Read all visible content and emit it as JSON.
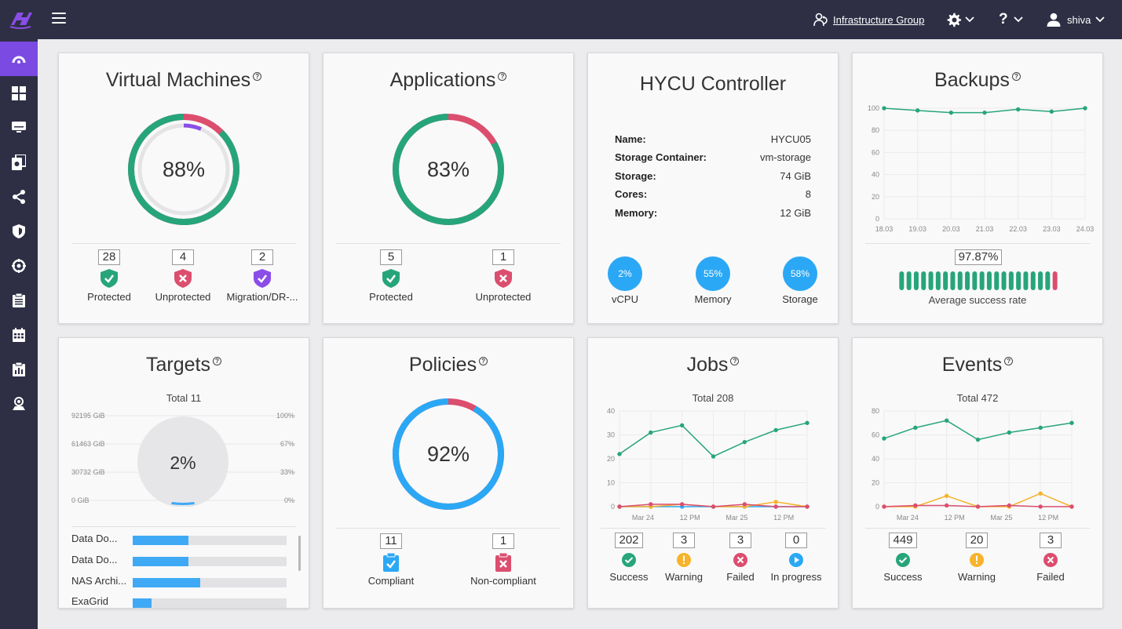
{
  "header": {
    "group_label": "Infrastructure Group",
    "user_label": "shiva"
  },
  "colors": {
    "green": "#27a57a",
    "red": "#dc4e6e",
    "purple": "#8a4de8",
    "blue": "#2ba8f5",
    "orange": "#f7b32b",
    "sidebar": "#2e2f45"
  },
  "sidebar": {
    "items": [
      "dashboard-icon",
      "grid-icon",
      "monitor-icon",
      "copies-icon",
      "share-icon",
      "shield-icon",
      "targets-icon",
      "clipboard-icon",
      "calendar-icon",
      "report-icon",
      "user-cog-icon"
    ]
  },
  "vm": {
    "title": "Virtual Machines",
    "percent_text": "88%",
    "protected_fraction": 0.875,
    "stats": [
      {
        "value": "28",
        "label": "Protected"
      },
      {
        "value": "4",
        "label": "Unprotected"
      },
      {
        "value": "2",
        "label": "Migration/DR-..."
      }
    ]
  },
  "apps": {
    "title": "Applications",
    "percent_text": "83%",
    "protected_fraction": 0.833,
    "stats": [
      {
        "value": "5",
        "label": "Protected"
      },
      {
        "value": "1",
        "label": "Unprotected"
      }
    ]
  },
  "controller": {
    "title": "HYCU Controller",
    "rows": [
      {
        "key": "Name:",
        "value": "HYCU05"
      },
      {
        "key": "Storage Container:",
        "value": "vm-storage"
      },
      {
        "key": "Storage:",
        "value": "74 GiB"
      },
      {
        "key": "Cores:",
        "value": "8"
      },
      {
        "key": "Memory:",
        "value": "12 GiB"
      }
    ],
    "usage": [
      {
        "value": "2%",
        "label": "vCPU"
      },
      {
        "value": "55%",
        "label": "Memory"
      },
      {
        "value": "58%",
        "label": "Storage"
      }
    ]
  },
  "backups": {
    "title": "Backups",
    "rate_text": "97.87%",
    "rate_label": "Average success rate",
    "bar_statuses": [
      "success",
      "success",
      "success",
      "success",
      "success",
      "success",
      "success",
      "success",
      "success",
      "success",
      "success",
      "success",
      "success",
      "success",
      "success",
      "success",
      "success",
      "success",
      "success",
      "success",
      "success",
      "failed"
    ]
  },
  "targets": {
    "title": "Targets",
    "total_text": "Total 11",
    "percent_text": "2%",
    "used_fraction": 0.02,
    "left_ticks": [
      "92195 GiB",
      "61463 GiB",
      "30732 GiB",
      "0 GiB"
    ],
    "right_ticks": [
      "100%",
      "67%",
      "33%",
      "0%"
    ],
    "rows": [
      {
        "name": "Data Do...",
        "fraction": 0.36
      },
      {
        "name": "Data Do...",
        "fraction": 0.36
      },
      {
        "name": "NAS Archi...",
        "fraction": 0.44
      },
      {
        "name": "ExaGrid",
        "fraction": 0.12
      }
    ]
  },
  "policies": {
    "title": "Policies",
    "percent_text": "92%",
    "compliant_fraction": 0.917,
    "stats": [
      {
        "value": "11",
        "label": "Compliant"
      },
      {
        "value": "1",
        "label": "Non-compliant"
      }
    ]
  },
  "jobs": {
    "title": "Jobs",
    "total_text": "Total 208",
    "stats": [
      {
        "value": "202",
        "label": "Success"
      },
      {
        "value": "3",
        "label": "Warning"
      },
      {
        "value": "3",
        "label": "Failed"
      },
      {
        "value": "0",
        "label": "In progress"
      }
    ]
  },
  "events": {
    "title": "Events",
    "total_text": "Total 472",
    "stats": [
      {
        "value": "449",
        "label": "Success"
      },
      {
        "value": "20",
        "label": "Warning"
      },
      {
        "value": "3",
        "label": "Failed"
      }
    ]
  },
  "chart_data": [
    {
      "id": "backups",
      "type": "line",
      "x": [
        "18.03",
        "19.03",
        "20.03",
        "21.03",
        "22.03",
        "23.03",
        "24.03"
      ],
      "series": [
        {
          "values": [
            100,
            98,
            96,
            96,
            99,
            97,
            100
          ]
        }
      ],
      "ylim": [
        0,
        100
      ],
      "yticks": [
        0,
        20,
        40,
        60,
        80,
        100
      ],
      "grid": true
    },
    {
      "id": "jobs",
      "type": "line",
      "x_ticks": [
        "Mar 24",
        "12 PM",
        "Mar 25",
        "12 PM"
      ],
      "series": [
        {
          "values": [
            22,
            31,
            34,
            21,
            27,
            32,
            35
          ]
        },
        {
          "values": [
            0,
            1,
            1,
            0,
            1,
            0,
            0
          ]
        },
        {
          "values": [
            0,
            0,
            1,
            0,
            0,
            2,
            0
          ]
        },
        {
          "values": [
            0,
            0,
            0,
            0,
            0,
            0,
            0
          ]
        }
      ],
      "ylim": [
        0,
        40
      ],
      "yticks": [
        0,
        10,
        20,
        30,
        40
      ],
      "grid": true
    },
    {
      "id": "events",
      "type": "line",
      "x_ticks": [
        "Mar 24",
        "12 PM",
        "Mar 25",
        "12 PM"
      ],
      "series": [
        {
          "values": [
            57,
            66,
            72,
            56,
            62,
            66,
            70
          ]
        },
        {
          "values": [
            0,
            1,
            1,
            0,
            1,
            0,
            0
          ]
        },
        {
          "values": [
            0,
            0,
            9,
            0,
            0,
            11,
            0
          ]
        }
      ],
      "ylim": [
        0,
        80
      ],
      "yticks": [
        0,
        20,
        40,
        60,
        80
      ],
      "grid": true
    }
  ]
}
